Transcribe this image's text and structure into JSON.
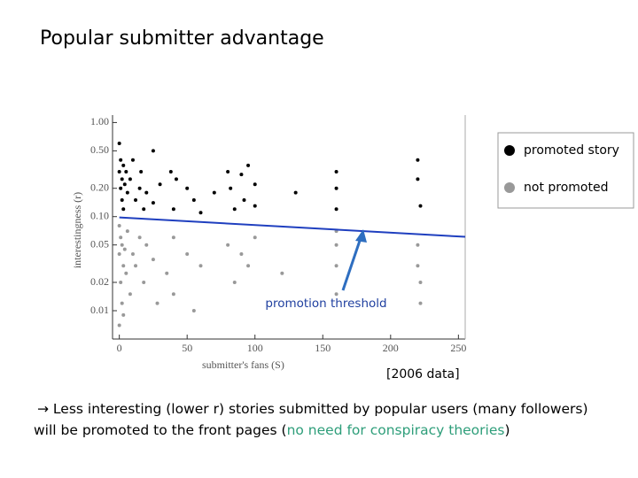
{
  "slide": {
    "title": "Popular submitter advantage",
    "source_note": "[2006 data]",
    "caption": {
      "text_before": "→ Less interesting (lower r) stories submitted by popular users (many followers) will be promoted to the front pages (",
      "highlight": "no need for conspiracy theories",
      "text_after": ")"
    }
  },
  "chart_data": {
    "type": "scatter",
    "x_label": "submitter's fans (S)",
    "y_label": "interestingness (r)",
    "xlim": [
      -5,
      255
    ],
    "ylim": [
      0.005,
      1.2
    ],
    "ylog": true,
    "xticks": [
      0,
      50,
      100,
      150,
      200,
      250
    ],
    "yticks": [
      {
        "value": 0.01,
        "label": "0.01"
      },
      {
        "value": 0.02,
        "label": "0.02"
      },
      {
        "value": 0.05,
        "label": "0.05"
      },
      {
        "value": 0.1,
        "label": "0.10"
      },
      {
        "value": 0.2,
        "label": "0.20"
      },
      {
        "value": 0.5,
        "label": "0.50"
      },
      {
        "value": 1,
        "label": "1.00"
      }
    ],
    "legend_position": "right",
    "series": [
      {
        "name": "promoted story",
        "color": "#000000",
        "x": [
          0,
          0,
          1,
          1,
          2,
          2,
          3,
          3,
          4,
          5,
          6,
          8,
          10,
          12,
          15,
          16,
          18,
          20,
          25,
          25,
          30,
          38,
          40,
          42,
          50,
          55,
          60,
          70,
          80,
          82,
          85,
          90,
          92,
          95,
          100,
          100,
          130,
          160,
          160,
          160,
          220,
          220,
          222
        ],
        "values": [
          0.6,
          0.3,
          0.4,
          0.2,
          0.25,
          0.15,
          0.35,
          0.12,
          0.22,
          0.3,
          0.18,
          0.25,
          0.4,
          0.15,
          0.2,
          0.3,
          0.12,
          0.18,
          0.5,
          0.14,
          0.22,
          0.3,
          0.12,
          0.25,
          0.2,
          0.15,
          0.11,
          0.18,
          0.3,
          0.2,
          0.12,
          0.28,
          0.15,
          0.35,
          0.22,
          0.13,
          0.18,
          0.3,
          0.2,
          0.12,
          0.4,
          0.25,
          0.13
        ]
      },
      {
        "name": "not promoted",
        "color": "#999999",
        "x": [
          0,
          0,
          0,
          1,
          1,
          2,
          2,
          3,
          3,
          4,
          5,
          6,
          8,
          10,
          12,
          15,
          18,
          20,
          25,
          28,
          35,
          40,
          40,
          50,
          55,
          60,
          80,
          85,
          90,
          95,
          100,
          120,
          160,
          160,
          160,
          160,
          220,
          220,
          222,
          222
        ],
        "values": [
          0.08,
          0.04,
          0.007,
          0.06,
          0.02,
          0.05,
          0.012,
          0.03,
          0.009,
          0.045,
          0.025,
          0.07,
          0.015,
          0.04,
          0.03,
          0.06,
          0.02,
          0.05,
          0.035,
          0.012,
          0.025,
          0.06,
          0.015,
          0.04,
          0.01,
          0.03,
          0.05,
          0.02,
          0.04,
          0.03,
          0.06,
          0.025,
          0.07,
          0.05,
          0.03,
          0.015,
          0.05,
          0.03,
          0.02,
          0.012
        ]
      }
    ],
    "threshold": {
      "label": "promotion threshold",
      "color": "#1f3fbf",
      "x": [
        0,
        255
      ],
      "values": [
        0.098,
        0.061
      ]
    }
  }
}
